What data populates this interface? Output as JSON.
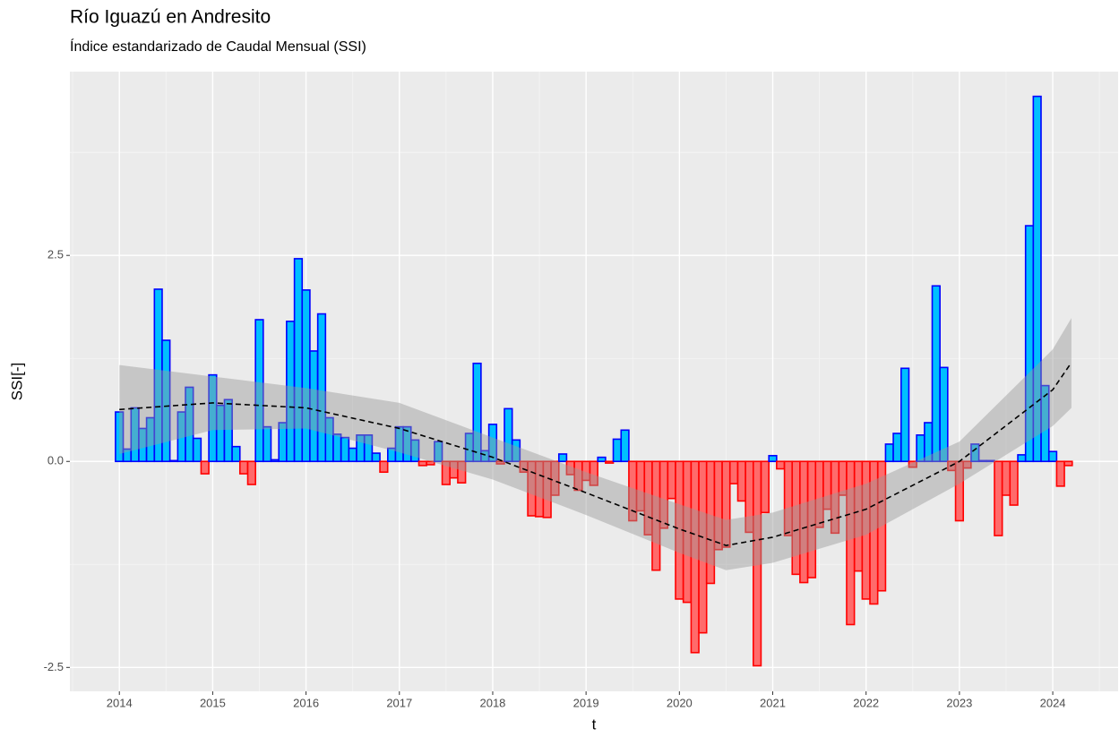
{
  "chart_data": {
    "type": "bar",
    "title": "Río Iguazú en Andresito",
    "subtitle": "Índice estandarizado de Caudal Mensual (SSI)",
    "x_label": "t",
    "y_label": "SSI[-]",
    "positive_color": "#00bfff",
    "positive_border": "#0000ff",
    "negative_color": "#ff6b6b",
    "negative_border": "#ff0000",
    "grid": true,
    "xlim": [
      2013.47,
      2024.7
    ],
    "xticks": [
      2014,
      2015,
      2016,
      2017,
      2018,
      2019,
      2020,
      2021,
      2022,
      2023,
      2024
    ],
    "ylim": [
      -2.79,
      4.73
    ],
    "yticks": [
      {
        "value": -2.5,
        "label": "-2.5"
      },
      {
        "value": 0,
        "label": "0.0"
      },
      {
        "value": 2.5,
        "label": "2.5"
      }
    ],
    "x": [
      2014,
      2014.083,
      2014.167,
      2014.25,
      2014.333,
      2014.417,
      2014.5,
      2014.583,
      2014.667,
      2014.75,
      2014.833,
      2014.917,
      2015,
      2015.083,
      2015.167,
      2015.25,
      2015.333,
      2015.417,
      2015.5,
      2015.583,
      2015.667,
      2015.75,
      2015.833,
      2015.917,
      2016,
      2016.083,
      2016.167,
      2016.25,
      2016.333,
      2016.417,
      2016.5,
      2016.583,
      2016.667,
      2016.75,
      2016.833,
      2016.917,
      2017,
      2017.083,
      2017.167,
      2017.25,
      2017.333,
      2017.417,
      2017.5,
      2017.583,
      2017.667,
      2017.75,
      2017.833,
      2017.917,
      2018,
      2018.083,
      2018.167,
      2018.25,
      2018.333,
      2018.417,
      2018.5,
      2018.583,
      2018.667,
      2018.75,
      2018.833,
      2018.917,
      2019,
      2019.083,
      2019.167,
      2019.25,
      2019.333,
      2019.417,
      2019.5,
      2019.583,
      2019.667,
      2019.75,
      2019.833,
      2019.917,
      2020,
      2020.083,
      2020.167,
      2020.25,
      2020.333,
      2020.417,
      2020.5,
      2020.583,
      2020.667,
      2020.75,
      2020.833,
      2020.917,
      2021,
      2021.083,
      2021.167,
      2021.25,
      2021.333,
      2021.417,
      2021.5,
      2021.583,
      2021.667,
      2021.75,
      2021.833,
      2021.917,
      2022,
      2022.083,
      2022.167,
      2022.25,
      2022.333,
      2022.417,
      2022.5,
      2022.583,
      2022.667,
      2022.75,
      2022.833,
      2022.917,
      2023,
      2023.083,
      2023.167,
      2023.25,
      2023.333,
      2023.417,
      2023.5,
      2023.583,
      2023.667,
      2023.75,
      2023.833,
      2023.917,
      2024,
      2024.083,
      2024.167
    ],
    "values": [
      0.6,
      0.15,
      0.65,
      0.4,
      0.53,
      2.09,
      1.47,
      0.01,
      0.6,
      0.9,
      0.28,
      -0.15,
      1.05,
      0.68,
      0.75,
      0.18,
      -0.15,
      -0.28,
      1.72,
      0.42,
      0.02,
      0.47,
      1.7,
      2.46,
      2.08,
      1.34,
      1.79,
      0.53,
      0.33,
      0.29,
      0.16,
      0.32,
      0.32,
      0.1,
      -0.13,
      0.16,
      0.42,
      0.42,
      0.26,
      -0.05,
      -0.04,
      0.24,
      -0.28,
      -0.2,
      -0.26,
      0.34,
      1.19,
      0.13,
      0.45,
      -0.03,
      0.64,
      0.26,
      -0.13,
      -0.66,
      -0.67,
      -0.68,
      -0.41,
      0.09,
      -0.16,
      -0.35,
      -0.23,
      -0.29,
      0.05,
      -0.02,
      0.27,
      0.38,
      -0.72,
      -0.6,
      -0.89,
      -1.32,
      -0.81,
      -0.45,
      -1.67,
      -1.71,
      -2.32,
      -2.08,
      -1.48,
      -1.07,
      -1.04,
      -0.27,
      -0.48,
      -0.86,
      -2.48,
      -0.62,
      0.07,
      -0.09,
      -0.9,
      -1.37,
      -1.47,
      -1.41,
      -0.8,
      -0.58,
      -0.87,
      -0.41,
      -1.98,
      -1.33,
      -1.67,
      -1.73,
      -1.57,
      0.21,
      0.34,
      1.13,
      -0.07,
      0.32,
      0.47,
      2.13,
      1.14,
      -0.11,
      -0.72,
      -0.08,
      0.21,
      0.01,
      0.01,
      -0.9,
      -0.41,
      -0.53,
      0.08,
      2.86,
      4.43,
      0.92,
      0.12,
      -0.3,
      -0.05
    ],
    "trend": {
      "color": "#000000",
      "band_color": "#999999",
      "x": [
        2014,
        2015,
        2016,
        2017,
        2018,
        2019,
        2020,
        2020.5,
        2021,
        2022,
        2023,
        2024,
        2024.2
      ],
      "values": [
        0.63,
        0.71,
        0.65,
        0.4,
        0.05,
        -0.38,
        -0.82,
        -1.02,
        -0.92,
        -0.58,
        0,
        0.87,
        1.2
      ],
      "lower": [
        0.09,
        0.38,
        0.4,
        0.11,
        -0.22,
        -0.65,
        -1.11,
        -1.32,
        -1.23,
        -0.89,
        -0.27,
        0.43,
        0.65
      ],
      "upper": [
        1.17,
        1.03,
        0.89,
        0.71,
        0.29,
        -0.13,
        -0.52,
        -0.71,
        -0.62,
        -0.27,
        0.24,
        1.36,
        1.74
      ]
    }
  }
}
